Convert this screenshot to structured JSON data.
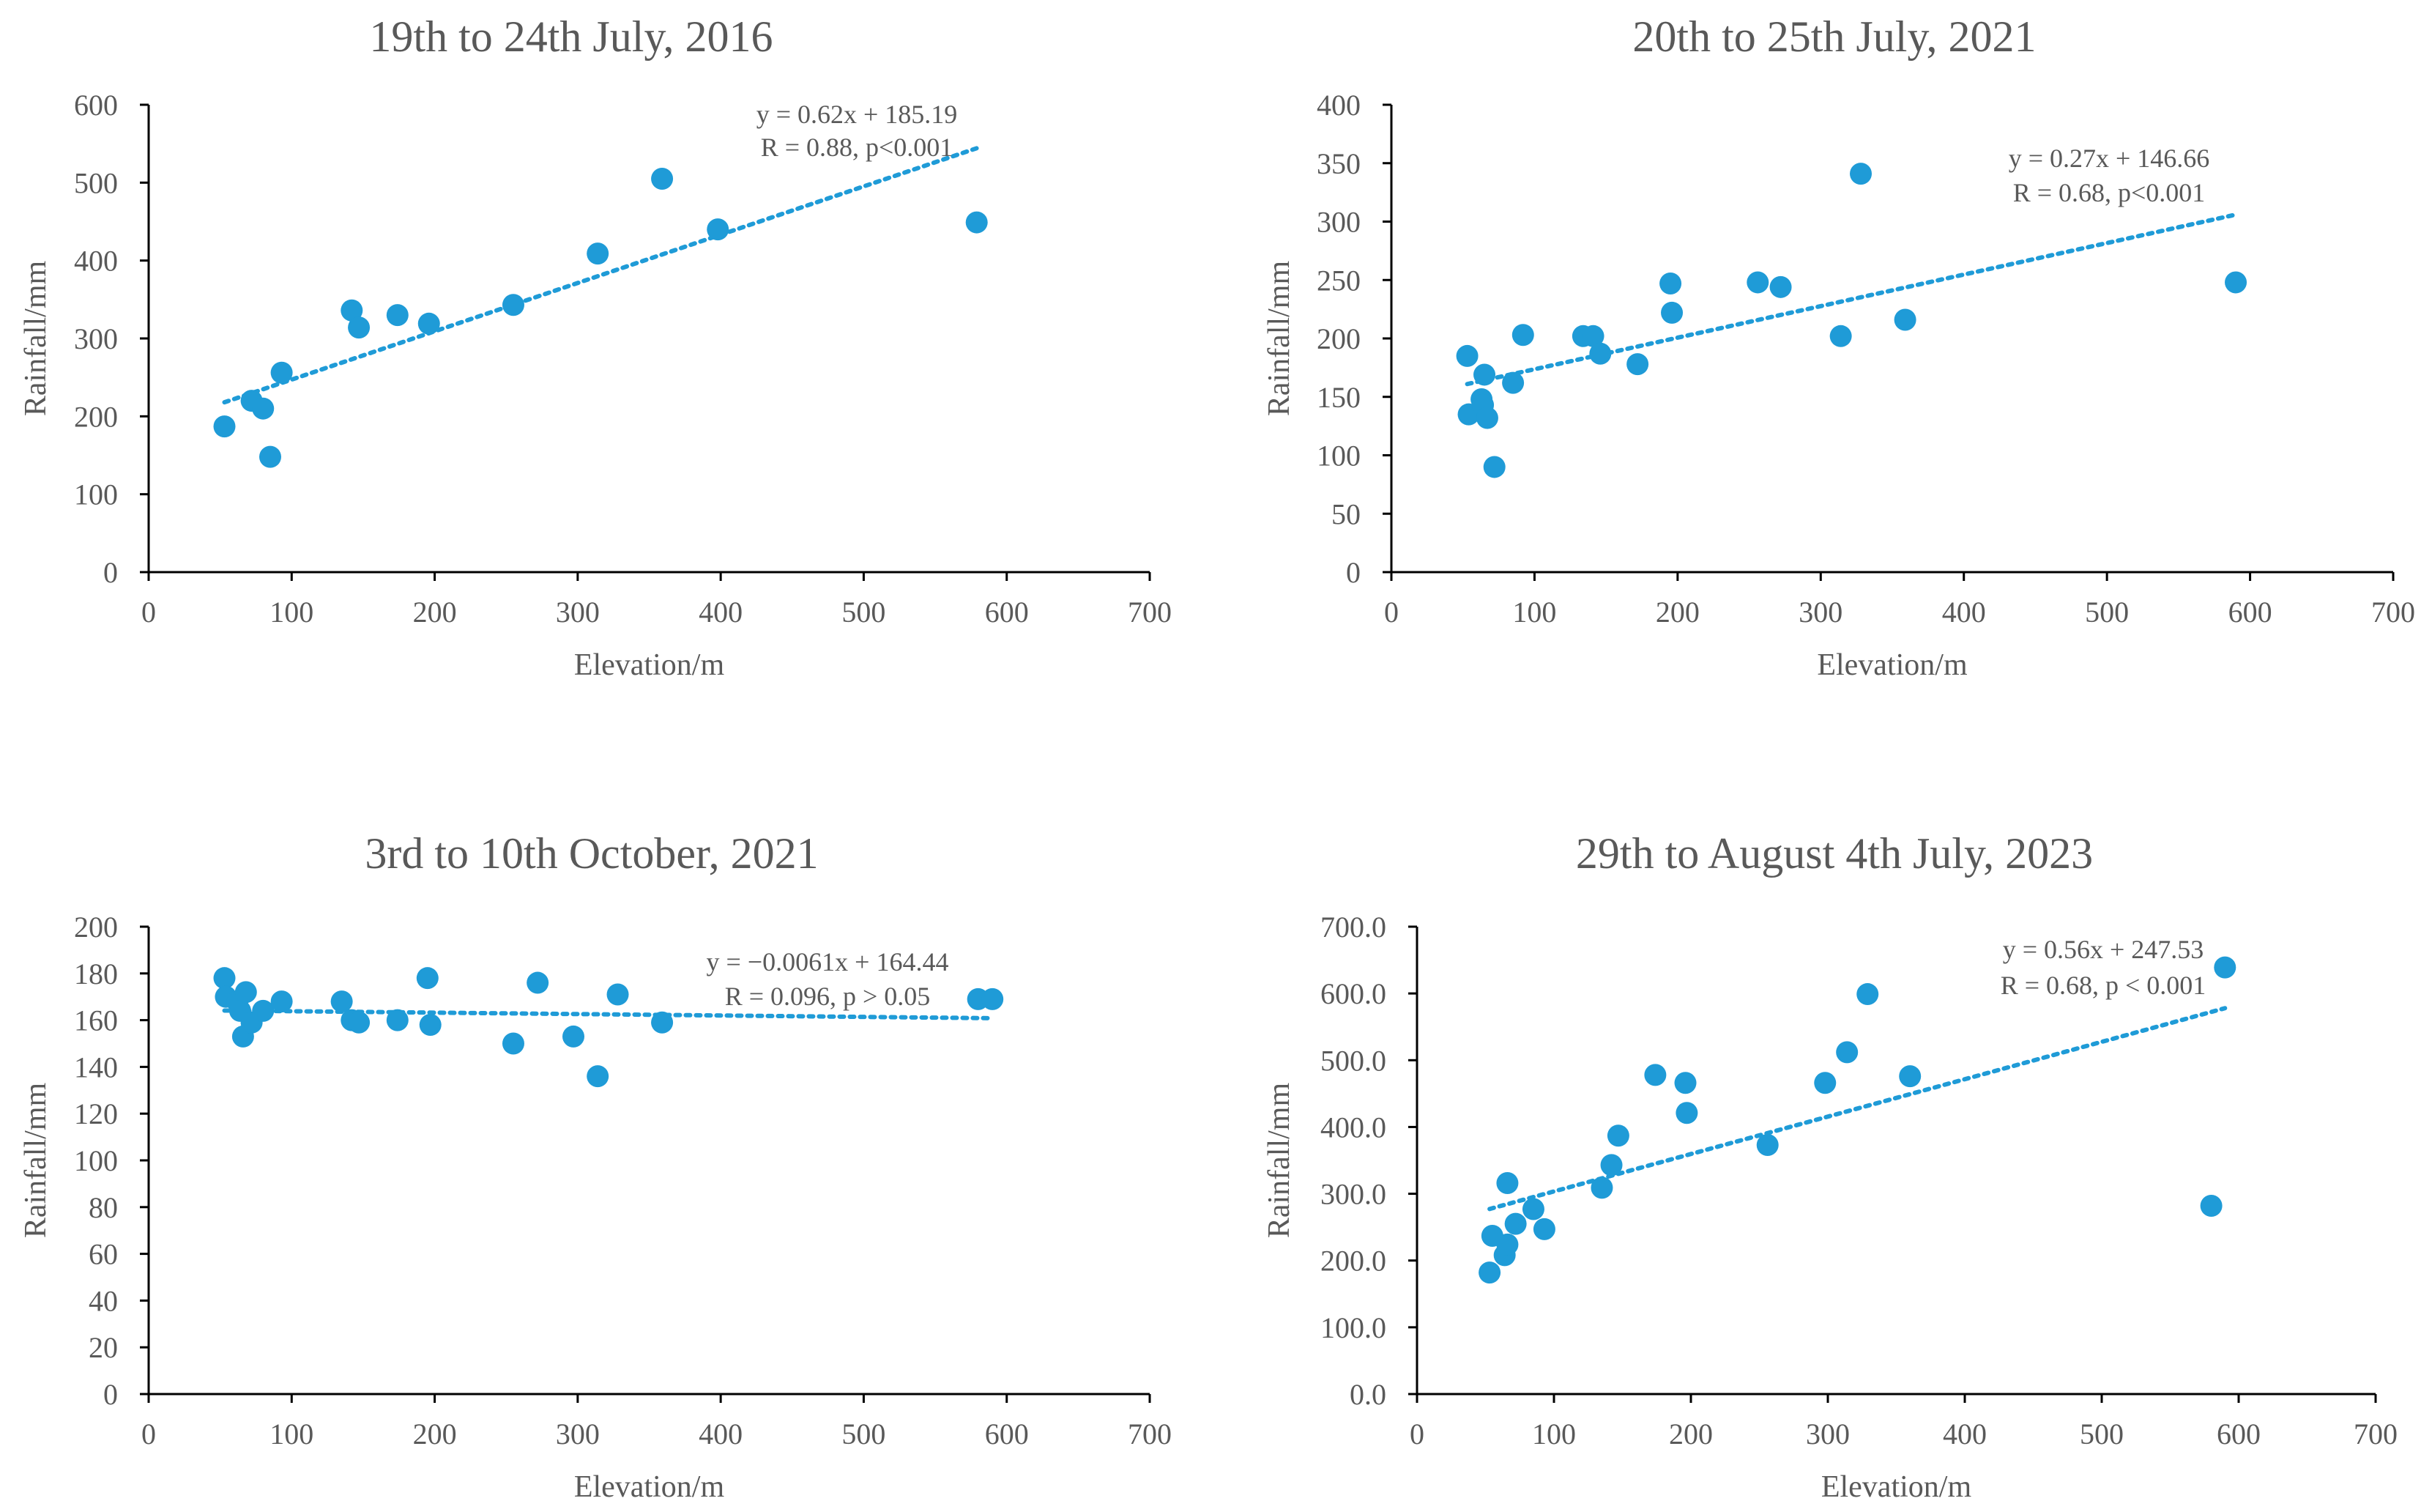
{
  "chart_data": [
    {
      "type": "scatter",
      "title": "19th to 24th July, 2016",
      "xlabel": "Elevation/m",
      "ylabel": "Rainfall/mm",
      "xlim": [
        0,
        700
      ],
      "ylim": [
        0,
        600
      ],
      "xticks": [
        0,
        100,
        200,
        300,
        400,
        500,
        600,
        700
      ],
      "xtick_labels": [
        "0",
        "100",
        "200",
        "300",
        "400",
        "500",
        "600",
        "700"
      ],
      "yticks": [
        0,
        100,
        200,
        300,
        400,
        500,
        600
      ],
      "ytick_labels": [
        "0",
        "100",
        "200",
        "300",
        "400",
        "500",
        "600"
      ],
      "points": [
        [
          53,
          187
        ],
        [
          72,
          220
        ],
        [
          80,
          210
        ],
        [
          85,
          148
        ],
        [
          93,
          256
        ],
        [
          142,
          336
        ],
        [
          147,
          314
        ],
        [
          174,
          330
        ],
        [
          196,
          319
        ],
        [
          255,
          343
        ],
        [
          314,
          409
        ],
        [
          359,
          505
        ],
        [
          398,
          440
        ],
        [
          579,
          449
        ]
      ],
      "trendline": {
        "slope": 0.62,
        "intercept": 185.19,
        "x_range": [
          53,
          579
        ]
      },
      "equation": "y = 0.62x + 185.19",
      "stats": "R = 0.88, p<0.001",
      "colors": {
        "point": "#1f9bd7",
        "trend": "#1f9bd7",
        "text": "#595959"
      }
    },
    {
      "type": "scatter",
      "title": "20th to 25th July, 2021",
      "xlabel": "Elevation/m",
      "ylabel": "Rainfall/mm",
      "xlim": [
        0,
        700
      ],
      "ylim": [
        0,
        400
      ],
      "xticks": [
        0,
        100,
        200,
        300,
        400,
        500,
        600,
        700
      ],
      "xtick_labels": [
        "0",
        "100",
        "200",
        "300",
        "400",
        "500",
        "600",
        "700"
      ],
      "yticks": [
        0,
        50,
        100,
        150,
        200,
        250,
        300,
        350,
        400
      ],
      "ytick_labels": [
        "0",
        "50",
        "100",
        "150",
        "200",
        "250",
        "300",
        "350",
        "400"
      ],
      "points": [
        [
          53,
          185
        ],
        [
          54,
          135
        ],
        [
          63,
          148
        ],
        [
          64,
          143
        ],
        [
          65,
          169
        ],
        [
          67,
          132
        ],
        [
          72,
          90
        ],
        [
          85,
          162
        ],
        [
          92,
          203
        ],
        [
          134,
          202
        ],
        [
          141,
          202
        ],
        [
          146,
          187
        ],
        [
          172,
          178
        ],
        [
          195,
          247
        ],
        [
          196,
          222
        ],
        [
          256,
          248
        ],
        [
          272,
          244
        ],
        [
          314,
          202
        ],
        [
          328,
          341
        ],
        [
          359,
          216
        ],
        [
          590,
          248
        ]
      ],
      "trendline": {
        "slope": 0.27,
        "intercept": 146.66,
        "x_range": [
          53,
          590
        ]
      },
      "equation": "y = 0.27x + 146.66",
      "stats": "R = 0.68, p<0.001",
      "colors": {
        "point": "#1f9bd7",
        "trend": "#1f9bd7",
        "text": "#595959"
      }
    },
    {
      "type": "scatter",
      "title": "3rd to 10th October, 2021",
      "xlabel": "Elevation/m",
      "ylabel": "Rainfall/mm",
      "xlim": [
        0,
        700
      ],
      "ylim": [
        0,
        200
      ],
      "xticks": [
        0,
        100,
        200,
        300,
        400,
        500,
        600,
        700
      ],
      "xtick_labels": [
        "0",
        "100",
        "200",
        "300",
        "400",
        "500",
        "600",
        "700"
      ],
      "yticks": [
        0,
        20,
        40,
        60,
        80,
        100,
        120,
        140,
        160,
        180,
        200
      ],
      "ytick_labels": [
        "0",
        "20",
        "40",
        "60",
        "80",
        "100",
        "120",
        "140",
        "160",
        "180",
        "200"
      ],
      "points": [
        [
          53,
          178
        ],
        [
          54,
          170
        ],
        [
          62,
          168
        ],
        [
          64,
          164
        ],
        [
          66,
          153
        ],
        [
          68,
          172
        ],
        [
          72,
          159
        ],
        [
          80,
          164
        ],
        [
          93,
          168
        ],
        [
          135,
          168
        ],
        [
          142,
          160
        ],
        [
          147,
          159
        ],
        [
          174,
          160
        ],
        [
          195,
          178
        ],
        [
          197,
          158
        ],
        [
          255,
          150
        ],
        [
          272,
          176
        ],
        [
          297,
          153
        ],
        [
          314,
          136
        ],
        [
          328,
          171
        ],
        [
          359,
          159
        ],
        [
          580,
          169
        ],
        [
          590,
          169
        ]
      ],
      "trendline": {
        "slope": -0.0061,
        "intercept": 164.44,
        "x_range": [
          53,
          590
        ]
      },
      "equation": "y = −0.0061x + 164.44",
      "stats": "R = 0.096, p > 0.05",
      "colors": {
        "point": "#1f9bd7",
        "trend": "#1f9bd7",
        "text": "#595959"
      }
    },
    {
      "type": "scatter",
      "title": "29th to August 4th July, 2023",
      "xlabel": "Elevation/m",
      "ylabel": "Rainfall/mm",
      "xlim": [
        0,
        700
      ],
      "ylim": [
        0,
        700
      ],
      "xticks": [
        0,
        100,
        200,
        300,
        400,
        500,
        600,
        700
      ],
      "xtick_labels": [
        "0",
        "100",
        "200",
        "300",
        "400",
        "500",
        "600",
        "700"
      ],
      "yticks": [
        0,
        100,
        200,
        300,
        400,
        500,
        600,
        700
      ],
      "ytick_labels": [
        "0.0",
        "100.0",
        "200.0",
        "300.0",
        "400.0",
        "500.0",
        "600.0",
        "700.0"
      ],
      "points": [
        [
          53,
          182
        ],
        [
          55,
          237
        ],
        [
          64,
          208
        ],
        [
          66,
          224
        ],
        [
          66,
          316
        ],
        [
          72,
          255
        ],
        [
          85,
          277
        ],
        [
          93,
          247
        ],
        [
          135,
          309
        ],
        [
          142,
          343
        ],
        [
          147,
          387
        ],
        [
          174,
          478
        ],
        [
          196,
          466
        ],
        [
          197,
          421
        ],
        [
          256,
          373
        ],
        [
          298,
          466
        ],
        [
          314,
          512
        ],
        [
          329,
          599
        ],
        [
          360,
          476
        ],
        [
          580,
          282
        ],
        [
          590,
          639
        ]
      ],
      "trendline": {
        "slope": 0.56,
        "intercept": 247.53,
        "x_range": [
          53,
          590
        ]
      },
      "equation": "y = 0.56x + 247.53",
      "stats": "R = 0.68, p  < 0.001",
      "colors": {
        "point": "#1f9bd7",
        "trend": "#1f9bd7",
        "text": "#595959"
      }
    }
  ]
}
